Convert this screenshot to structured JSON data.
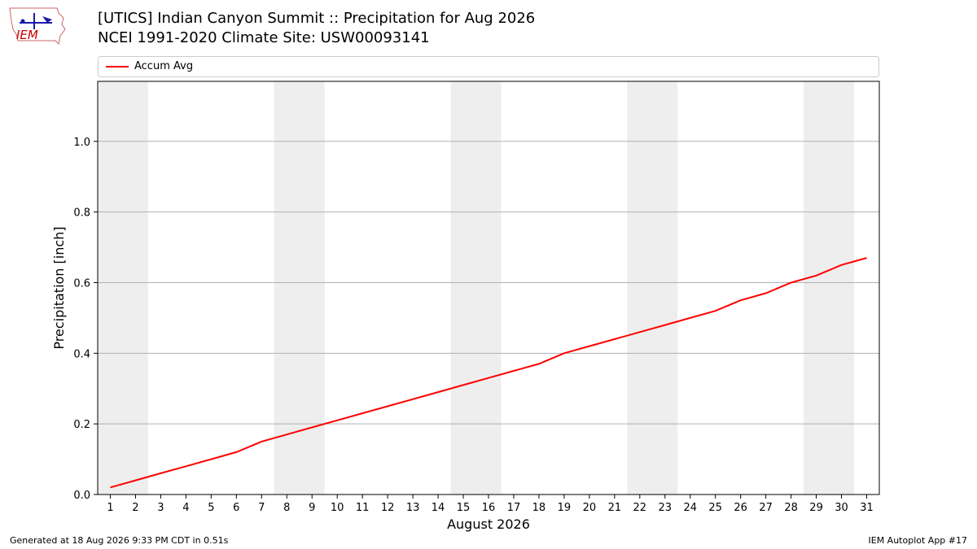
{
  "header": {
    "title_line1": "[UTICS] Indian Canyon Summit  :: Precipitation for Aug 2026",
    "title_line2": "NCEI 1991-2020 Climate Site: USW00093141",
    "logo_text": "IEM"
  },
  "footer": {
    "generated": "Generated at 18 Aug 2026 9:33 PM CDT in 0.51s",
    "app": "IEM Autoplot App #17"
  },
  "colors": {
    "series": "#ff0000",
    "weekend_band": "#eeeeee",
    "grid": "#b0b0b0",
    "logo": "#cc0000"
  },
  "chart_data": {
    "type": "line",
    "title": "[UTICS] Indian Canyon Summit  :: Precipitation for Aug 2026",
    "subtitle": "NCEI 1991-2020 Climate Site: USW00093141",
    "xlabel": "August 2026",
    "ylabel": "Precipitation [inch]",
    "xlim": [
      0.5,
      31.5
    ],
    "ylim": [
      0,
      1.17
    ],
    "grid": "horizontal",
    "legend_placement": "top",
    "x_ticks": [
      1,
      2,
      3,
      4,
      5,
      6,
      7,
      8,
      9,
      10,
      11,
      12,
      13,
      14,
      15,
      16,
      17,
      18,
      19,
      20,
      21,
      22,
      23,
      24,
      25,
      26,
      27,
      28,
      29,
      30,
      31
    ],
    "y_ticks": [
      0.0,
      0.2,
      0.4,
      0.6,
      0.8,
      1.0
    ],
    "y_tick_labels": [
      "0.0",
      "0.2",
      "0.4",
      "0.6",
      "0.8",
      "1.0"
    ],
    "weekend_bands": [
      [
        1,
        2
      ],
      [
        8,
        9
      ],
      [
        15,
        16
      ],
      [
        22,
        23
      ],
      [
        29,
        30
      ]
    ],
    "series": [
      {
        "name": "Accum Avg",
        "x": [
          1,
          2,
          3,
          4,
          5,
          6,
          7,
          8,
          9,
          10,
          11,
          12,
          13,
          14,
          15,
          16,
          17,
          18,
          19,
          20,
          21,
          22,
          23,
          24,
          25,
          26,
          27,
          28,
          29,
          30,
          31
        ],
        "values": [
          0.02,
          0.04,
          0.06,
          0.08,
          0.1,
          0.12,
          0.15,
          0.17,
          0.19,
          0.21,
          0.23,
          0.25,
          0.27,
          0.29,
          0.31,
          0.33,
          0.35,
          0.37,
          0.4,
          0.42,
          0.44,
          0.46,
          0.48,
          0.5,
          0.52,
          0.55,
          0.57,
          0.6,
          0.62,
          0.65,
          0.67
        ]
      }
    ]
  }
}
